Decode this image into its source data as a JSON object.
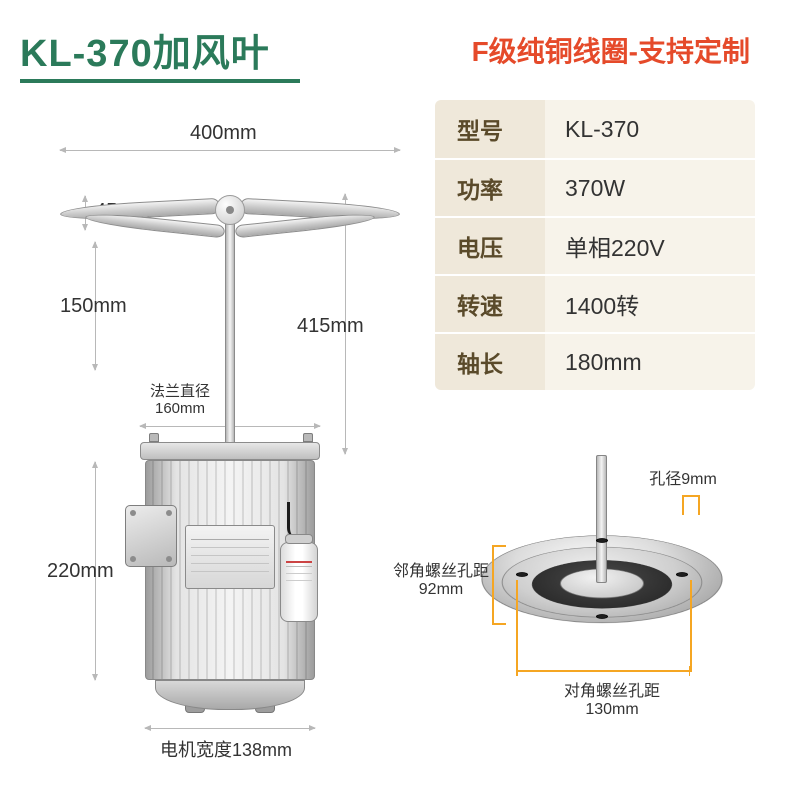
{
  "title": "KL-370加风叶",
  "title_color": "#2b7a5a",
  "underline_color": "#2b7a5a",
  "subtitle": "F级纯铜线圈-支持定制",
  "subtitle_color": "#e54a2a",
  "spec_table": {
    "label_bg": "#efe8da",
    "value_bg": "#f7f3ea",
    "label_color": "#5a4a2a",
    "value_color": "#333333",
    "rows": [
      {
        "label": "型号",
        "value": "KL-370"
      },
      {
        "label": "功率",
        "value": "370W"
      },
      {
        "label": "电压",
        "value": "单相220V"
      },
      {
        "label": "转速",
        "value": "1400转"
      },
      {
        "label": "轴长",
        "value": "180mm"
      }
    ]
  },
  "dimensions": {
    "fan_width": "400mm",
    "blade_thickness": "45mm",
    "shaft_segment": "150mm",
    "flange_dia_label": "法兰直径",
    "flange_dia_value": "160mm",
    "overall_height": "415mm",
    "body_height": "220mm",
    "motor_width_label": "电机宽度",
    "motor_width_value": "138mm"
  },
  "flange_detail": {
    "hole_dia_label": "孔径",
    "hole_dia_value": "9mm",
    "adj_label": "邻角螺丝孔距",
    "adj_value": "92mm",
    "diag_label": "对角螺丝孔距",
    "diag_value": "130mm",
    "accent_color": "#f5a623"
  }
}
